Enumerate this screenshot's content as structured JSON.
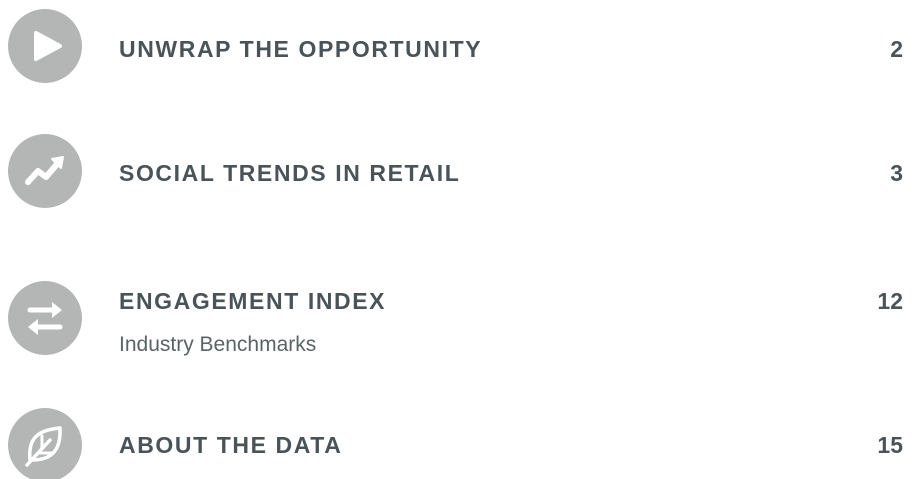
{
  "items": [
    {
      "title": "UNWRAP THE OPPORTUNITY",
      "page": "2"
    },
    {
      "title": "SOCIAL TRENDS IN RETAIL",
      "page": "3"
    },
    {
      "title": "ENGAGEMENT INDEX",
      "subtitle": "Industry Benchmarks",
      "page": "12"
    },
    {
      "title": "ABOUT THE DATA",
      "page": "15"
    }
  ]
}
